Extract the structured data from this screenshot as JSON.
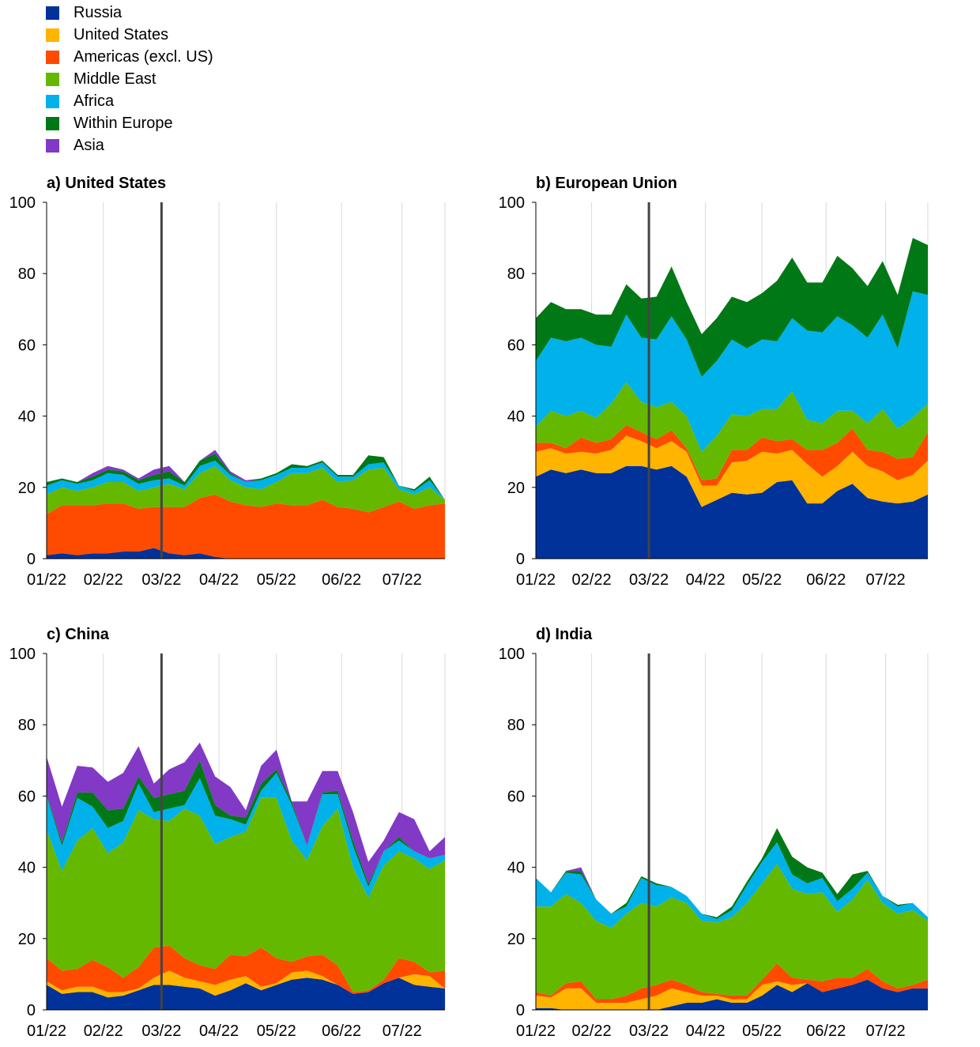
{
  "colors": {
    "russia": "#003299",
    "us": "#FFB400",
    "americas": "#FF4B00",
    "middle_east": "#65B800",
    "africa": "#00B1EA",
    "europe": "#007816",
    "asia": "#8139C6",
    "event_line": "#444444",
    "grid": "#d9d9d9"
  },
  "chart_data": {
    "type": "area",
    "stacked": true,
    "ylim": [
      0,
      100
    ],
    "yticks": [
      0,
      20,
      40,
      60,
      80,
      100
    ],
    "x_index_range": [
      0,
      26
    ],
    "xticks": [
      {
        "label": "01/22",
        "index": 0
      },
      {
        "label": "02/22",
        "index": 3.7
      },
      {
        "label": "03/22",
        "index": 7.5
      },
      {
        "label": "04/22",
        "index": 11.25
      },
      {
        "label": "05/22",
        "index": 15
      },
      {
        "label": "06/22",
        "index": 19.25
      },
      {
        "label": "07/22",
        "index": 23.2
      }
    ],
    "event_line_index": 7.5,
    "legend": [
      {
        "key": "russia",
        "label": "Russia",
        "icon": "square"
      },
      {
        "key": "us",
        "label": "United States",
        "icon": "square"
      },
      {
        "key": "americas",
        "label": "Americas (excl. US)",
        "icon": "square"
      },
      {
        "key": "middle_east",
        "label": "Middle East",
        "icon": "square"
      },
      {
        "key": "africa",
        "label": "Africa",
        "icon": "square"
      },
      {
        "key": "europe",
        "label": "Within Europe",
        "icon": "square"
      },
      {
        "key": "asia",
        "label": "Asia",
        "icon": "square"
      }
    ],
    "panels": [
      {
        "title": "a) United States",
        "series": [
          {
            "key": "russia",
            "values": [
              1,
              1.5,
              1,
              1.5,
              1.5,
              2,
              2,
              3,
              1.5,
              1,
              1.5,
              0.5,
              0,
              0,
              0,
              0,
              0,
              0,
              0,
              0,
              0,
              0,
              0,
              0,
              0,
              0,
              0
            ]
          },
          {
            "key": "us",
            "values": [
              0,
              0,
              0,
              0,
              0,
              0,
              0,
              0,
              0,
              0,
              0,
              0,
              0,
              0,
              0,
              0,
              0,
              0,
              0,
              0,
              0,
              0,
              0,
              0,
              0,
              0,
              0
            ]
          },
          {
            "key": "americas",
            "values": [
              11.5,
              13.5,
              14,
              13.5,
              14,
              13.5,
              12,
              11.5,
              13,
              13.5,
              15.5,
              17.5,
              16,
              15,
              14.5,
              15.5,
              15,
              15,
              16.5,
              14.5,
              14,
              13,
              14.5,
              16,
              14,
              15,
              15.5
            ]
          },
          {
            "key": "middle_east",
            "values": [
              5.5,
              5,
              4,
              5,
              6,
              6,
              5,
              5.5,
              6.5,
              5,
              7,
              8,
              6,
              5,
              5,
              6,
              9,
              9,
              9,
              7,
              8,
              12,
              11,
              3.5,
              4,
              5,
              1
            ]
          },
          {
            "key": "africa",
            "values": [
              2.5,
              2,
              2,
              2,
              2.5,
              2,
              2,
              2,
              1.5,
              1,
              2,
              1.5,
              1.5,
              1.5,
              2.5,
              2,
              1.5,
              1.5,
              1.5,
              1.5,
              1,
              1.5,
              1.5,
              1,
              1,
              2,
              0
            ]
          },
          {
            "key": "europe",
            "values": [
              1,
              0.5,
              0.5,
              1,
              1,
              1,
              1,
              1.5,
              2,
              1,
              1.5,
              2,
              0.5,
              0,
              0.5,
              0.5,
              1,
              0.5,
              0.5,
              0.5,
              0.5,
              2.5,
              1.5,
              0,
              0.5,
              1,
              0
            ]
          },
          {
            "key": "asia",
            "values": [
              0,
              0,
              0,
              1,
              1,
              0.5,
              0.5,
              1.5,
              1.5,
              0,
              0,
              1,
              0.5,
              0.5,
              0,
              0,
              0,
              0,
              0,
              0,
              0,
              0,
              0,
              0,
              0,
              0,
              0
            ]
          }
        ]
      },
      {
        "title": "b) European Union",
        "series": [
          {
            "key": "russia",
            "values": [
              23,
              25,
              24,
              25,
              24,
              24,
              26,
              26,
              25,
              26,
              23,
              14.5,
              16.5,
              18.5,
              18,
              18.5,
              21.5,
              22,
              15.5,
              15.5,
              19,
              21,
              17,
              16,
              15.5,
              16,
              18
            ]
          },
          {
            "key": "us",
            "values": [
              7,
              6,
              5.5,
              5,
              5.5,
              6.5,
              8.5,
              7,
              6,
              7,
              7,
              6,
              4,
              8.5,
              9.5,
              11.5,
              8,
              8.5,
              11,
              7.5,
              7,
              9,
              9,
              8.5,
              6.5,
              7.5,
              9.5
            ]
          },
          {
            "key": "americas",
            "values": [
              2.5,
              1.5,
              1.5,
              4,
              3,
              3,
              3,
              2.5,
              2.5,
              3,
              1,
              1.5,
              2,
              3.5,
              3,
              4,
              3.5,
              3,
              4,
              7.5,
              6.5,
              6.5,
              4.5,
              5.5,
              6,
              5,
              8
            ]
          },
          {
            "key": "middle_east",
            "values": [
              4.5,
              9,
              9,
              7.5,
              7,
              10,
              12,
              8.5,
              9,
              8,
              9,
              8,
              12,
              10,
              9.5,
              8,
              9,
              13.5,
              8.5,
              7.5,
              9,
              5,
              7.5,
              12,
              8.5,
              11,
              8
            ]
          },
          {
            "key": "africa",
            "values": [
              18.5,
              20.5,
              21,
              20.5,
              20.5,
              16,
              19,
              18,
              19,
              24,
              21.5,
              21,
              21,
              21,
              19,
              19.5,
              19,
              20.5,
              25,
              25.5,
              26.5,
              24,
              24,
              26.5,
              22.5,
              35.5,
              30.5
            ]
          },
          {
            "key": "europe",
            "values": [
              12,
              10,
              9,
              8,
              8.5,
              9,
              8.5,
              11,
              12,
              14,
              10.5,
              12,
              12,
              12,
              13,
              13,
              17,
              17,
              13.5,
              14,
              17,
              16,
              14.5,
              15,
              15,
              15,
              14
            ]
          },
          {
            "key": "asia",
            "values": [
              0,
              0,
              0,
              0,
              0,
              0,
              0,
              0,
              0,
              0,
              0,
              0,
              0,
              0,
              0,
              0,
              0,
              0,
              0,
              0,
              0,
              0,
              0,
              0,
              0,
              0,
              0
            ]
          }
        ]
      },
      {
        "title": "c) China",
        "series": [
          {
            "key": "russia",
            "values": [
              7,
              4.5,
              5,
              5,
              3.5,
              4,
              5.5,
              7,
              7,
              6.5,
              6,
              4,
              5.5,
              7.5,
              5.5,
              7,
              8.5,
              9,
              8.5,
              7,
              4.5,
              5,
              7.5,
              9,
              7,
              6.5,
              6
            ]
          },
          {
            "key": "us",
            "values": [
              1,
              1,
              1.5,
              1.5,
              1.5,
              1,
              0.5,
              2,
              4,
              2.5,
              2,
              3,
              3,
              2,
              1,
              0.5,
              2,
              2,
              1,
              0,
              0,
              0,
              0,
              0,
              3,
              3,
              0
            ]
          },
          {
            "key": "americas",
            "values": [
              6.5,
              5.5,
              5,
              7.5,
              7,
              4,
              6,
              8.5,
              7,
              5.5,
              4.5,
              4.5,
              7,
              5.5,
              11,
              7,
              3,
              4,
              6,
              5.5,
              0.5,
              0.5,
              1,
              5.5,
              3.5,
              1,
              5
            ]
          },
          {
            "key": "middle_east",
            "values": [
              36,
              28,
              36,
              37,
              32,
              38,
              44,
              36,
              35,
              42,
              42,
              35,
              33,
              35,
              42,
              45,
              34,
              27,
              36,
              44,
              35,
              26,
              32,
              30,
              29,
              29,
              31
            ]
          },
          {
            "key": "africa",
            "values": [
              9.5,
              7,
              12,
              6,
              7,
              6,
              7.5,
              2,
              3.5,
              1,
              10.5,
              8,
              5,
              2,
              2,
              7,
              10,
              4,
              9,
              4,
              6,
              3,
              4,
              3,
              2,
              3,
              1.5
            ]
          },
          {
            "key": "europe",
            "values": [
              0.5,
              1,
              1.5,
              4,
              5,
              3.5,
              2,
              4,
              4,
              4,
              5,
              3,
              1,
              2,
              2,
              1,
              1,
              0,
              0.5,
              1,
              1.5,
              1,
              0,
              1,
              0,
              0,
              0
            ]
          },
          {
            "key": "asia",
            "values": [
              10.5,
              10,
              7.5,
              7,
              8,
              10,
              8.5,
              4,
              7,
              8,
              5,
              8,
              8,
              2,
              5,
              5.5,
              0,
              12.5,
              6,
              5.5,
              8,
              6,
              3,
              7,
              9,
              2,
              5
            ]
          }
        ]
      },
      {
        "title": "d) India",
        "series": [
          {
            "key": "russia",
            "values": [
              0.5,
              0.5,
              0,
              0,
              0,
              0,
              0,
              0,
              0,
              1,
              2,
              2,
              3,
              2,
              2,
              4,
              7,
              5,
              7.5,
              5,
              6,
              7,
              8.5,
              6,
              5,
              6,
              6
            ]
          },
          {
            "key": "us",
            "values": [
              3.5,
              3,
              6,
              6,
              2,
              2,
              2,
              3,
              4,
              5,
              3,
              2,
              1,
              1,
              1,
              3,
              1,
              2,
              0,
              0,
              0,
              0,
              0,
              0,
              0,
              0,
              0
            ]
          },
          {
            "key": "americas",
            "values": [
              1,
              0.5,
              1.5,
              2,
              1,
              1,
              2,
              3,
              3,
              2.5,
              2,
              1,
              0.5,
              1,
              1,
              1.5,
              5,
              2,
              1,
              3,
              3,
              2,
              3,
              2,
              1,
              1,
              2.5
            ]
          },
          {
            "key": "middle_east",
            "values": [
              24,
              25,
              25,
              22,
              22,
              20,
              23,
              24,
              22,
              23,
              23,
              20,
              20,
              22,
              26,
              27,
              28,
              25,
              24,
              25,
              18.5,
              22,
              25,
              22,
              21,
              21,
              16.5
            ]
          },
          {
            "key": "africa",
            "values": [
              8,
              4,
              6,
              8,
              6,
              4,
              2,
              7,
              6,
              3,
              2,
              2,
              1,
              2,
              5,
              6,
              6,
              4,
              3,
              4,
              3,
              3,
              2,
              2,
              2,
              2,
              1
            ]
          },
          {
            "key": "europe",
            "values": [
              0,
              0,
              0.5,
              1,
              0,
              0,
              1,
              0.5,
              0.5,
              0,
              0,
              0,
              0.5,
              1,
              1,
              1,
              4,
              5,
              4.5,
              1.5,
              2,
              4,
              0.5,
              0,
              0.5,
              0,
              0
            ]
          },
          {
            "key": "asia",
            "values": [
              0,
              0,
              0,
              1,
              0,
              0,
              0,
              0,
              0,
              0,
              0,
              0,
              0,
              0,
              0,
              0,
              0,
              0,
              0,
              0,
              0,
              0,
              0,
              0,
              0,
              0,
              0
            ]
          }
        ]
      }
    ]
  }
}
